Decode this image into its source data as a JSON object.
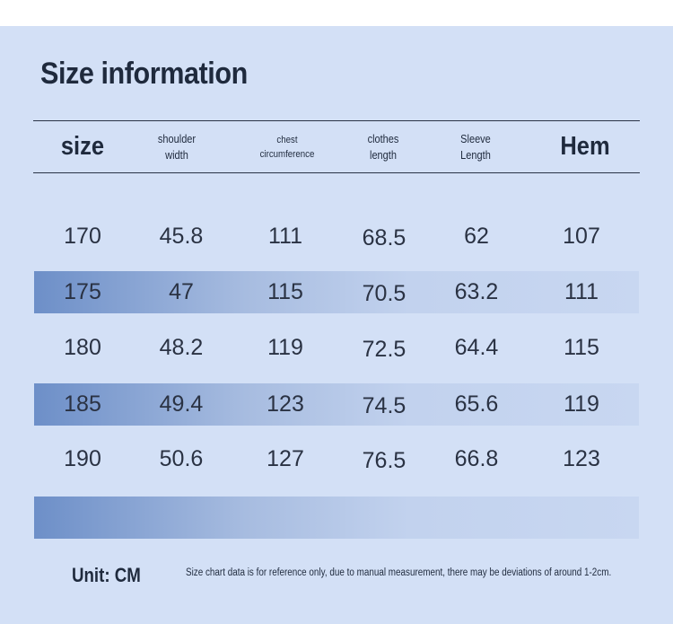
{
  "title": "Size information",
  "headers": [
    {
      "label": "size",
      "style": "big"
    },
    {
      "label": "shoulder\nwidth",
      "style": "small"
    },
    {
      "label": "chest\ncircumference",
      "style": "tiny"
    },
    {
      "label": "clothes\nlength",
      "style": "small"
    },
    {
      "label": "Sleeve\nLength",
      "style": "small"
    },
    {
      "label": "Hem",
      "style": "big"
    }
  ],
  "rows": [
    [
      "170",
      "45.8",
      "111",
      "68.5",
      "62",
      "107"
    ],
    [
      "175",
      "47",
      "115",
      "70.5",
      "63.2",
      "111"
    ],
    [
      "180",
      "48.2",
      "119",
      "72.5",
      "64.4",
      "115"
    ],
    [
      "185",
      "49.4",
      "123",
      "74.5",
      "65.6",
      "119"
    ],
    [
      "190",
      "50.6",
      "127",
      "76.5",
      "66.8",
      "123"
    ]
  ],
  "unit": "Unit: CM",
  "note": "Size chart data is for reference only, due to manual measurement, there may be deviations of around 1-2cm.",
  "colors": {
    "background": "#d3e0f6",
    "band_start": "#6d8fc8",
    "band_end": "#c8d7f1",
    "text": "#1f2a3d"
  }
}
